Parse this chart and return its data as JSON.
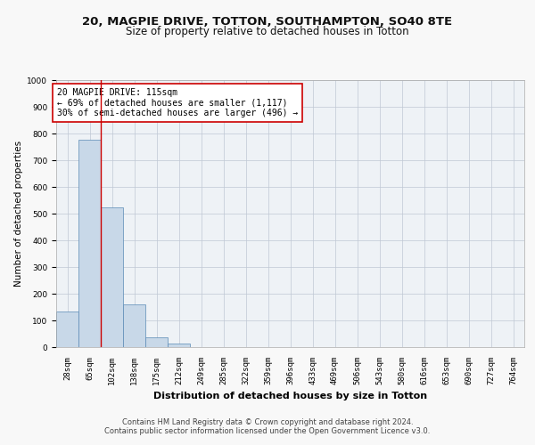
{
  "title1": "20, MAGPIE DRIVE, TOTTON, SOUTHAMPTON, SO40 8TE",
  "title2": "Size of property relative to detached houses in Totton",
  "xlabel": "Distribution of detached houses by size in Totton",
  "ylabel": "Number of detached properties",
  "categories": [
    "28sqm",
    "65sqm",
    "102sqm",
    "138sqm",
    "175sqm",
    "212sqm",
    "249sqm",
    "285sqm",
    "322sqm",
    "359sqm",
    "396sqm",
    "433sqm",
    "469sqm",
    "506sqm",
    "543sqm",
    "580sqm",
    "616sqm",
    "653sqm",
    "690sqm",
    "727sqm",
    "764sqm"
  ],
  "values": [
    132,
    778,
    522,
    160,
    38,
    12,
    0,
    0,
    0,
    0,
    0,
    0,
    0,
    0,
    0,
    0,
    0,
    0,
    0,
    0,
    0
  ],
  "bar_color": "#c8d8e8",
  "bar_edge_color": "#5a8ab5",
  "annotation_text": "20 MAGPIE DRIVE: 115sqm\n← 69% of detached houses are smaller (1,117)\n30% of semi-detached houses are larger (496) →",
  "annotation_box_color": "#ffffff",
  "annotation_box_edge": "#cc0000",
  "redline_x": 1.5,
  "ylim": [
    0,
    1000
  ],
  "yticks": [
    0,
    100,
    200,
    300,
    400,
    500,
    600,
    700,
    800,
    900,
    1000
  ],
  "footer1": "Contains HM Land Registry data © Crown copyright and database right 2024.",
  "footer2": "Contains public sector information licensed under the Open Government Licence v3.0.",
  "bg_color": "#eef2f6",
  "grid_color": "#c0c8d4",
  "fig_bg_color": "#f8f8f8",
  "title1_fontsize": 9.5,
  "title2_fontsize": 8.5,
  "xlabel_fontsize": 8,
  "ylabel_fontsize": 7.5,
  "tick_fontsize": 6.5,
  "annot_fontsize": 7,
  "footer_fontsize": 6
}
